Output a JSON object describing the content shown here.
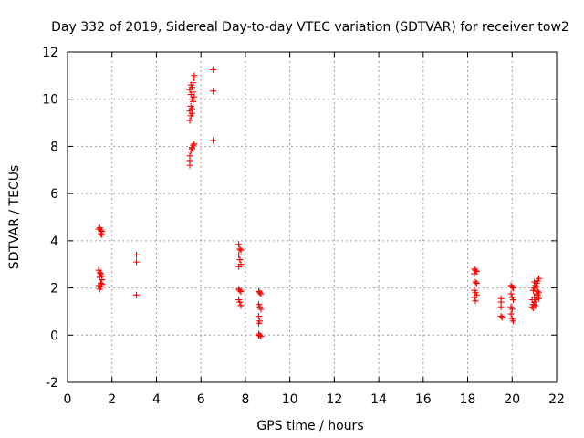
{
  "chart_data": {
    "type": "scatter",
    "title": "Day 332 of 2019, Sidereal Day-to-day VTEC variation (SDTVAR) for receiver tow2",
    "xlabel": "GPS time / hours",
    "ylabel": "SDTVAR / TECUs",
    "xlim": [
      0,
      22
    ],
    "ylim": [
      -2,
      12
    ],
    "xticks": [
      "0",
      "2",
      "4",
      "6",
      "8",
      "10",
      "12",
      "14",
      "16",
      "18",
      "20",
      "22"
    ],
    "yticks": [
      "-2",
      "0",
      "2",
      "4",
      "6",
      "8",
      "10",
      "12"
    ],
    "grid": true,
    "marker": "+",
    "color": "#ff0000",
    "series": [
      {
        "name": "SDTVAR",
        "points": [
          [
            1.4,
            4.5
          ],
          [
            1.45,
            4.55
          ],
          [
            1.5,
            4.45
          ],
          [
            1.55,
            4.4
          ],
          [
            1.5,
            4.3
          ],
          [
            1.55,
            4.25
          ],
          [
            1.4,
            2.75
          ],
          [
            1.45,
            2.65
          ],
          [
            1.5,
            2.6
          ],
          [
            1.55,
            2.5
          ],
          [
            1.45,
            2.45
          ],
          [
            1.55,
            2.35
          ],
          [
            1.5,
            2.2
          ],
          [
            1.4,
            2.1
          ],
          [
            1.5,
            2.05
          ],
          [
            1.55,
            2.15
          ],
          [
            1.45,
            1.95
          ],
          [
            3.1,
            3.4
          ],
          [
            3.1,
            3.1
          ],
          [
            3.1,
            1.7
          ],
          [
            5.5,
            7.2
          ],
          [
            5.5,
            7.4
          ],
          [
            5.5,
            7.6
          ],
          [
            5.55,
            7.8
          ],
          [
            5.6,
            7.95
          ],
          [
            5.65,
            8.05
          ],
          [
            5.7,
            8.1
          ],
          [
            5.6,
            7.9
          ],
          [
            5.5,
            9.1
          ],
          [
            5.55,
            9.3
          ],
          [
            5.5,
            9.5
          ],
          [
            5.55,
            9.7
          ],
          [
            5.6,
            9.4
          ],
          [
            5.6,
            9.6
          ],
          [
            5.65,
            9.9
          ],
          [
            5.6,
            10.0
          ],
          [
            5.7,
            10.1
          ],
          [
            5.55,
            10.2
          ],
          [
            5.5,
            10.4
          ],
          [
            5.6,
            10.5
          ],
          [
            5.65,
            10.7
          ],
          [
            5.7,
            10.9
          ],
          [
            5.7,
            11.0
          ],
          [
            5.55,
            10.6
          ],
          [
            5.65,
            10.3
          ],
          [
            6.55,
            11.25
          ],
          [
            6.55,
            10.35
          ],
          [
            6.55,
            8.25
          ],
          [
            7.7,
            3.85
          ],
          [
            7.75,
            3.65
          ],
          [
            7.8,
            3.6
          ],
          [
            7.7,
            3.4
          ],
          [
            7.75,
            3.2
          ],
          [
            7.8,
            3.0
          ],
          [
            7.7,
            2.9
          ],
          [
            7.7,
            1.95
          ],
          [
            7.75,
            1.9
          ],
          [
            7.8,
            1.85
          ],
          [
            7.7,
            1.5
          ],
          [
            7.75,
            1.4
          ],
          [
            7.8,
            1.25
          ],
          [
            8.6,
            1.85
          ],
          [
            8.65,
            1.8
          ],
          [
            8.7,
            1.75
          ],
          [
            8.6,
            1.3
          ],
          [
            8.65,
            1.2
          ],
          [
            8.7,
            1.1
          ],
          [
            8.6,
            0.8
          ],
          [
            8.65,
            0.6
          ],
          [
            8.6,
            0.5
          ],
          [
            8.6,
            0.05
          ],
          [
            8.65,
            0.0
          ],
          [
            8.7,
            -0.05
          ],
          [
            8.6,
            -0.02
          ],
          [
            18.3,
            2.8
          ],
          [
            18.35,
            2.75
          ],
          [
            18.4,
            2.7
          ],
          [
            18.3,
            2.6
          ],
          [
            18.35,
            2.25
          ],
          [
            18.4,
            2.2
          ],
          [
            18.3,
            1.9
          ],
          [
            18.35,
            1.8
          ],
          [
            18.4,
            1.7
          ],
          [
            18.3,
            1.6
          ],
          [
            18.35,
            1.45
          ],
          [
            19.5,
            1.55
          ],
          [
            19.5,
            1.4
          ],
          [
            19.5,
            1.2
          ],
          [
            19.5,
            0.8
          ],
          [
            19.55,
            0.75
          ],
          [
            19.95,
            2.1
          ],
          [
            20.0,
            2.05
          ],
          [
            20.05,
            2.0
          ],
          [
            19.95,
            1.75
          ],
          [
            20.0,
            1.6
          ],
          [
            20.05,
            1.5
          ],
          [
            19.95,
            1.2
          ],
          [
            20.0,
            1.1
          ],
          [
            19.95,
            0.9
          ],
          [
            20.0,
            0.7
          ],
          [
            20.05,
            0.6
          ],
          [
            20.9,
            1.2
          ],
          [
            20.95,
            1.3
          ],
          [
            21.0,
            1.4
          ],
          [
            21.05,
            1.5
          ],
          [
            21.1,
            1.6
          ],
          [
            21.15,
            1.7
          ],
          [
            21.2,
            1.8
          ],
          [
            20.95,
            1.9
          ],
          [
            21.0,
            2.0
          ],
          [
            21.05,
            2.1
          ],
          [
            21.1,
            2.2
          ],
          [
            21.15,
            2.3
          ],
          [
            21.2,
            2.4
          ],
          [
            20.9,
            1.5
          ],
          [
            21.0,
            1.6
          ],
          [
            21.1,
            1.75
          ],
          [
            21.15,
            1.85
          ],
          [
            21.2,
            1.55
          ],
          [
            21.05,
            1.25
          ],
          [
            20.95,
            1.15
          ],
          [
            21.1,
            2.05
          ],
          [
            21.0,
            2.25
          ]
        ]
      }
    ]
  }
}
